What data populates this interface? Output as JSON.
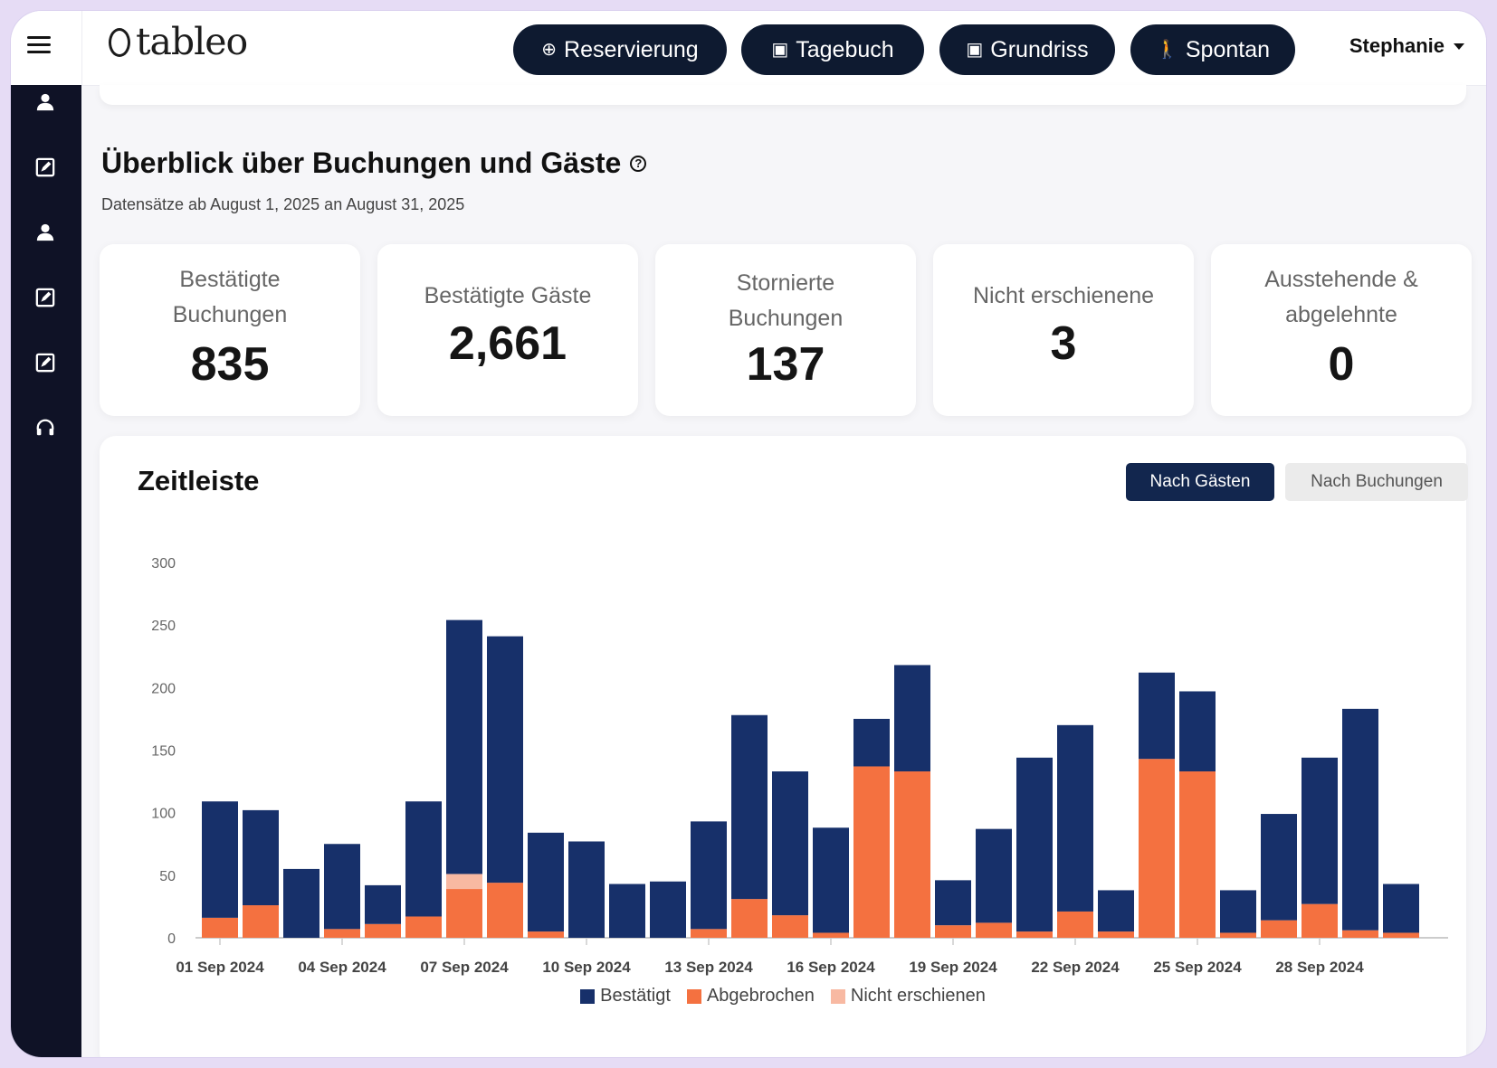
{
  "header": {
    "logo_text": "tableo",
    "buttons": [
      {
        "label": "Reservierung",
        "icon": "plus-circle-icon",
        "glyph": "⊕"
      },
      {
        "label": "Tagebuch",
        "icon": "calendar-icon",
        "glyph": "▣"
      },
      {
        "label": "Grundriss",
        "icon": "calendar-icon",
        "glyph": "▣"
      },
      {
        "label": "Spontan",
        "icon": "walking-icon",
        "glyph": "🚶"
      }
    ],
    "user": "Stephanie"
  },
  "sidebar": {
    "items": [
      {
        "icon": "user-icon"
      },
      {
        "icon": "edit-icon"
      },
      {
        "icon": "user-icon"
      },
      {
        "icon": "edit-icon"
      },
      {
        "icon": "edit-icon"
      },
      {
        "icon": "headset-icon"
      }
    ]
  },
  "overview": {
    "title": "Überblick über Buchungen und Gäste",
    "subtitle": "Datensätze ab August 1, 2025 an August 31, 2025",
    "stats": [
      {
        "label_lines": [
          "Bestätigte",
          "Buchungen"
        ],
        "value": "835"
      },
      {
        "label_lines": [
          "Bestätigte Gäste"
        ],
        "value": "2,661"
      },
      {
        "label_lines": [
          "Stornierte",
          "Buchungen"
        ],
        "value": "137"
      },
      {
        "label_lines": [
          "Nicht erschienene"
        ],
        "value": "3"
      },
      {
        "label_lines": [
          "Ausstehende &",
          "abgelehnte"
        ],
        "value": "0"
      }
    ]
  },
  "timeline": {
    "title": "Zeitleiste",
    "toggle_active": "Nach Gästen",
    "toggle_inactive": "Nach Buchungen"
  },
  "colors": {
    "confirmed": "#17306a",
    "cancelled": "#f47140",
    "noshow": "#f8b9a2",
    "dark_button": "#0e1a30",
    "sidebar": "#0f1226"
  },
  "chart_data": {
    "type": "bar",
    "stacked": true,
    "ylim": [
      0,
      300
    ],
    "yticks": [
      0,
      50,
      100,
      150,
      200,
      250,
      300
    ],
    "categories": [
      "01 Sep 2024",
      "02 Sep 2024",
      "03 Sep 2024",
      "04 Sep 2024",
      "05 Sep 2024",
      "06 Sep 2024",
      "07 Sep 2024",
      "08 Sep 2024",
      "09 Sep 2024",
      "10 Sep 2024",
      "11 Sep 2024",
      "12 Sep 2024",
      "13 Sep 2024",
      "14 Sep 2024",
      "15 Sep 2024",
      "16 Sep 2024",
      "17 Sep 2024",
      "18 Sep 2024",
      "19 Sep 2024",
      "20 Sep 2024",
      "21 Sep 2024",
      "22 Sep 2024",
      "23 Sep 2024",
      "24 Sep 2024",
      "25 Sep 2024",
      "26 Sep 2024",
      "27 Sep 2024",
      "28 Sep 2024",
      "29 Sep 2024",
      "30 Sep 2024"
    ],
    "tick_labels": [
      "01 Sep 2024",
      "04 Sep 2024",
      "07 Sep 2024",
      "10 Sep 2024",
      "13 Sep 2024",
      "16 Sep 2024",
      "19 Sep 2024",
      "22 Sep 2024",
      "25 Sep 2024",
      "28 Sep 2024"
    ],
    "series": [
      {
        "name": "Bestätigt",
        "values": [
          93,
          76,
          55,
          68,
          31,
          92,
          203,
          197,
          79,
          77,
          43,
          45,
          86,
          147,
          115,
          84,
          38,
          85,
          36,
          75,
          139,
          149,
          33,
          69,
          64,
          34,
          85,
          117,
          177,
          39
        ]
      },
      {
        "name": "Abgebrochen",
        "values": [
          16,
          26,
          0,
          7,
          11,
          17,
          39,
          44,
          5,
          0,
          0,
          0,
          7,
          31,
          18,
          4,
          137,
          133,
          10,
          12,
          5,
          21,
          5,
          143,
          133,
          4,
          14,
          27,
          6,
          4
        ]
      },
      {
        "name": "Nicht erschienen",
        "values": [
          0,
          0,
          0,
          0,
          0,
          0,
          12,
          0,
          0,
          0,
          0,
          0,
          0,
          0,
          0,
          0,
          0,
          0,
          0,
          0,
          0,
          0,
          0,
          0,
          0,
          0,
          0,
          0,
          0,
          0
        ]
      }
    ]
  }
}
